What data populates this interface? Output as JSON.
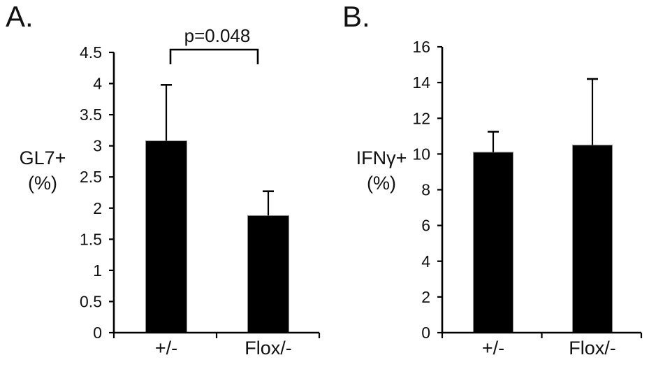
{
  "figure": {
    "background": "#ffffff",
    "ink_color": "#000000",
    "bar_color": "#000000",
    "panels": [
      {
        "label": "A.",
        "ylabel_lines": "GL7+\n(%)",
        "significance_label": "p=0.048"
      },
      {
        "label": "B.",
        "ylabel_lines": "IFNγ+\n(%)",
        "significance_label": ""
      }
    ]
  },
  "chart_data": [
    {
      "type": "bar",
      "panel": "A",
      "title": "",
      "xlabel": "",
      "ylabel": "GL7+ (%)",
      "categories": [
        "+/-",
        "Flox/-"
      ],
      "values": [
        3.08,
        1.88
      ],
      "errors_up": [
        0.9,
        0.39
      ],
      "ylim": [
        0,
        4.5
      ],
      "ytick_step": 0.5,
      "ytick_labels": [
        "0",
        "0.5",
        "1",
        "1.5",
        "2",
        "2.5",
        "3",
        "3.5",
        "4",
        "4.5"
      ],
      "annotation": "p=0.048",
      "annotation_between": [
        "+/-",
        "Flox/-"
      ],
      "grid": false,
      "legend": null,
      "bar_color": "#000000"
    },
    {
      "type": "bar",
      "panel": "B",
      "title": "",
      "xlabel": "",
      "ylabel": "IFNγ+ (%)",
      "categories": [
        "+/-",
        "Flox/-"
      ],
      "values": [
        10.1,
        10.5
      ],
      "errors_up": [
        1.15,
        3.7
      ],
      "ylim": [
        0,
        16
      ],
      "ytick_step": 2,
      "ytick_labels": [
        "0",
        "2",
        "4",
        "6",
        "8",
        "10",
        "12",
        "14",
        "16"
      ],
      "annotation": null,
      "grid": false,
      "legend": null,
      "bar_color": "#000000"
    }
  ]
}
